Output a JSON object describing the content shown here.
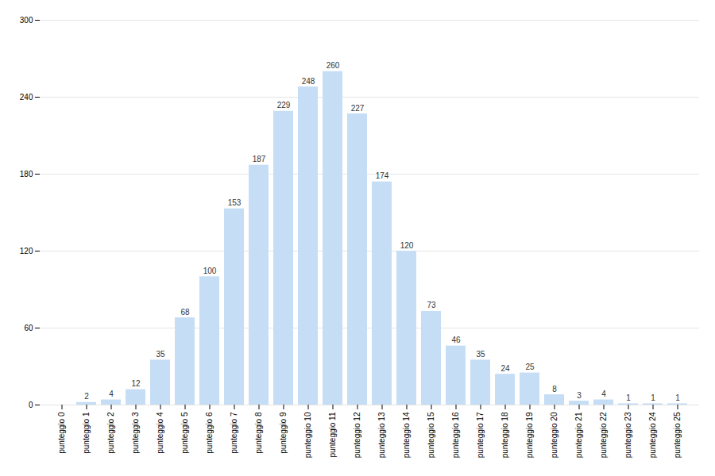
{
  "chart_data": {
    "type": "bar",
    "categories": [
      "punteggio 0",
      "punteggio 1",
      "punteggio 2",
      "punteggio 3",
      "punteggio 4",
      "punteggio 5",
      "punteggio 6",
      "punteggio 7",
      "punteggio 8",
      "punteggio 9",
      "punteggio 10",
      "punteggio 11",
      "punteggio 12",
      "punteggio 13",
      "punteggio 14",
      "punteggio 15",
      "punteggio 16",
      "punteggio 17",
      "punteggio 18",
      "punteggio 19",
      "punteggio 20",
      "punteggio 21",
      "punteggio 22",
      "punteggio 23",
      "punteggio 24",
      "punteggio 25"
    ],
    "values": [
      0,
      2,
      4,
      12,
      35,
      68,
      100,
      153,
      187,
      229,
      248,
      260,
      227,
      174,
      120,
      73,
      46,
      35,
      24,
      25,
      8,
      3,
      4,
      1,
      1,
      1
    ],
    "value_labels": [
      null,
      "2",
      "4",
      "12",
      "35",
      "68",
      "100",
      "153",
      "187",
      "229",
      "248",
      "260",
      "227",
      "174",
      "120",
      "73",
      "46",
      "35",
      "24",
      "25",
      "8",
      "3",
      "4",
      "1",
      "1",
      "1"
    ],
    "data_labels": true,
    "color": "#c5ddf5",
    "ylim": [
      0,
      300
    ],
    "yticks": [
      0,
      60,
      120,
      180,
      240,
      300
    ],
    "grid": true
  }
}
